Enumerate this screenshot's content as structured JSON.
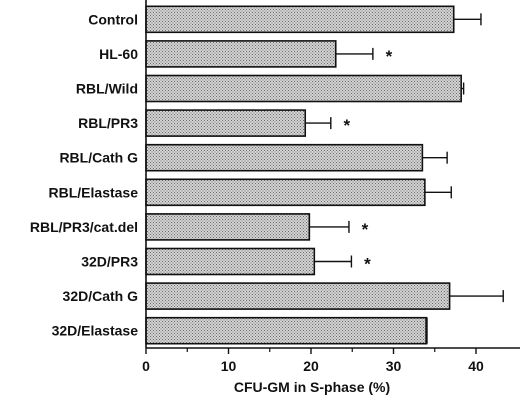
{
  "chart_data": {
    "type": "bar",
    "orientation": "horizontal",
    "categories": [
      "Control",
      "HL-60",
      "RBL/Wild",
      "RBL/PR3",
      "RBL/Cath G",
      "RBL/Elastase",
      "RBL/PR3/cat.del",
      "32D/PR3",
      "32D/Cath G",
      "32D/Elastase"
    ],
    "values": [
      37.3,
      23.0,
      38.2,
      19.3,
      33.5,
      33.8,
      19.8,
      20.4,
      36.8,
      34.0
    ],
    "errors": [
      3.3,
      4.5,
      0.3,
      3.1,
      3.0,
      3.2,
      4.8,
      4.5,
      6.5,
      0.0
    ],
    "significance": [
      "",
      "*",
      "",
      "*",
      "",
      "",
      "*",
      "*",
      "",
      ""
    ],
    "xlabel": "CFU-GM in S-phase (%)",
    "xlim": [
      0,
      45
    ],
    "xticks": [
      0,
      10,
      20,
      30,
      40
    ],
    "grid": false,
    "bar_fill": "stippled gray",
    "colors": {
      "bar_edge": "#111111",
      "bar_fill_base": "#d4d4d4",
      "bar_dot": "#6b6b6b"
    }
  }
}
